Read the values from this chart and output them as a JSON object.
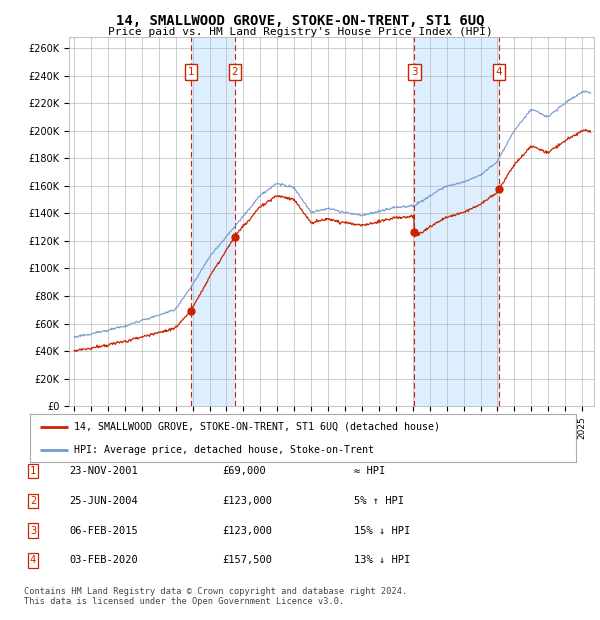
{
  "title": "14, SMALLWOOD GROVE, STOKE-ON-TRENT, ST1 6UQ",
  "subtitle": "Price paid vs. HM Land Registry's House Price Index (HPI)",
  "yticks": [
    0,
    20000,
    40000,
    60000,
    80000,
    100000,
    120000,
    140000,
    160000,
    180000,
    200000,
    220000,
    240000,
    260000
  ],
  "ytick_labels": [
    "£0",
    "£20K",
    "£40K",
    "£60K",
    "£80K",
    "£100K",
    "£120K",
    "£140K",
    "£160K",
    "£180K",
    "£200K",
    "£220K",
    "£240K",
    "£260K"
  ],
  "xlim_start": 1994.7,
  "xlim_end": 2025.7,
  "ylim_min": 0,
  "ylim_max": 268000,
  "hpi_color": "#7799cc",
  "price_color": "#cc2200",
  "sale_dates": [
    2001.896,
    2004.487,
    2015.093,
    2020.087
  ],
  "sale_prices": [
    69000,
    123000,
    123000,
    157500
  ],
  "sale_labels": [
    "1",
    "2",
    "3",
    "4"
  ],
  "vline_color": "#cc2200",
  "box_color": "#cc2200",
  "shade_color": "#ddeeff",
  "legend_label_price": "14, SMALLWOOD GROVE, STOKE-ON-TRENT, ST1 6UQ (detached house)",
  "legend_label_hpi": "HPI: Average price, detached house, Stoke-on-Trent",
  "table_data": [
    [
      "1",
      "23-NOV-2001",
      "£69,000",
      "≈ HPI"
    ],
    [
      "2",
      "25-JUN-2004",
      "£123,000",
      "5% ↑ HPI"
    ],
    [
      "3",
      "06-FEB-2015",
      "£123,000",
      "15% ↓ HPI"
    ],
    [
      "4",
      "03-FEB-2020",
      "£157,500",
      "13% ↓ HPI"
    ]
  ],
  "footer": "Contains HM Land Registry data © Crown copyright and database right 2024.\nThis data is licensed under the Open Government Licence v3.0.",
  "background_color": "#ffffff",
  "grid_color": "#bbbbbb",
  "hpi_anchor_years": [
    1995,
    1996,
    1997,
    1998,
    1999,
    2000,
    2001,
    2002,
    2003,
    2004,
    2005,
    2006,
    2007,
    2008,
    2009,
    2010,
    2011,
    2012,
    2013,
    2014,
    2015,
    2016,
    2017,
    2018,
    2019,
    2020,
    2021,
    2022,
    2023,
    2024,
    2025
  ],
  "hpi_anchor_values": [
    50000,
    52500,
    55000,
    58000,
    62000,
    66000,
    70000,
    88000,
    108000,
    123000,
    138000,
    153000,
    162000,
    158000,
    140000,
    143000,
    140000,
    138000,
    141000,
    144000,
    145000,
    152000,
    160000,
    163000,
    168000,
    178000,
    200000,
    215000,
    210000,
    220000,
    228000
  ]
}
